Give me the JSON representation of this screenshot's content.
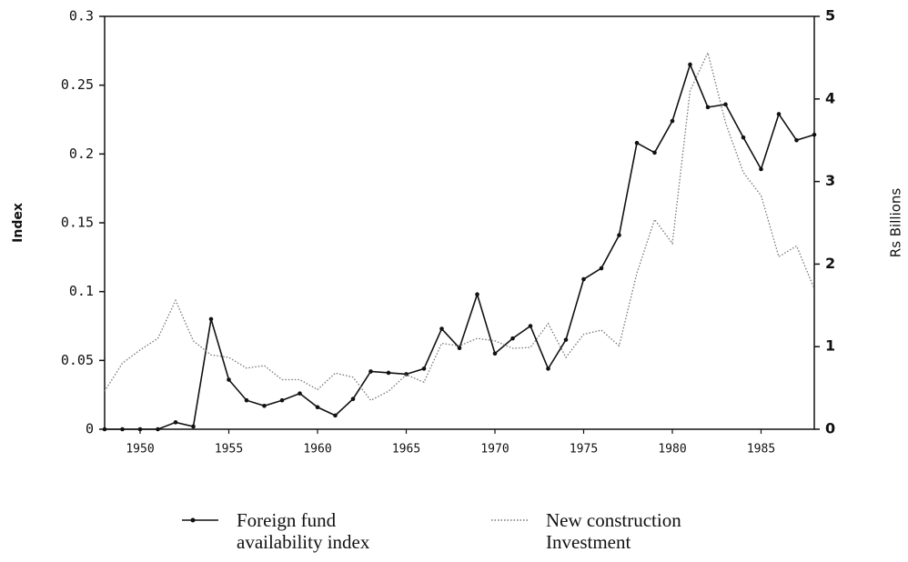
{
  "chart_data": {
    "type": "line",
    "x_label": null,
    "y_label": "Index",
    "y2_label": "Rs Billions",
    "x": [
      1948,
      1949,
      1950,
      1951,
      1952,
      1953,
      1954,
      1955,
      1956,
      1957,
      1958,
      1959,
      1960,
      1961,
      1962,
      1963,
      1964,
      1965,
      1966,
      1967,
      1968,
      1969,
      1970,
      1971,
      1972,
      1973,
      1974,
      1975,
      1976,
      1977,
      1978,
      1979,
      1980,
      1981,
      1982,
      1983,
      1984,
      1985,
      1986,
      1987,
      1988
    ],
    "xlim": [
      1948,
      1988
    ],
    "xticks": [
      1950,
      1955,
      1960,
      1965,
      1970,
      1975,
      1980,
      1985
    ],
    "ylim": [
      0,
      0.3
    ],
    "yticks": [
      0,
      0.05,
      0.1,
      0.15,
      0.2,
      0.25,
      0.3
    ],
    "y2lim": [
      0,
      5
    ],
    "y2ticks": [
      0,
      1,
      2,
      3,
      4,
      5
    ],
    "series": [
      {
        "name": "Foreign fund availability index",
        "color": "#111111",
        "line_style": "solid",
        "marker": true,
        "values": [
          0,
          0,
          0,
          0,
          0.005,
          0.002,
          0.08,
          0.036,
          0.021,
          0.017,
          0.021,
          0.026,
          0.016,
          0.01,
          0.022,
          0.042,
          0.041,
          0.04,
          0.044,
          0.073,
          0.059,
          0.098,
          0.055,
          0.066,
          0.075,
          0.044,
          0.065,
          0.109,
          0.117,
          0.141,
          0.208,
          0.201,
          0.224,
          0.265,
          0.234,
          0.236,
          0.212,
          0.189,
          0.229,
          0.21,
          0.214
        ]
      },
      {
        "name": "New construction Investment",
        "color": "#777777",
        "line_style": "dotted",
        "marker": false,
        "axis": "y2",
        "values": [
          0.46,
          0.8,
          0.96,
          1.1,
          1.56,
          1.07,
          0.9,
          0.87,
          0.74,
          0.77,
          0.6,
          0.6,
          0.48,
          0.68,
          0.63,
          0.35,
          0.46,
          0.66,
          0.57,
          1.04,
          1.01,
          1.1,
          1.07,
          0.98,
          0.99,
          1.28,
          0.87,
          1.15,
          1.2,
          1.01,
          1.89,
          2.54,
          2.25,
          4.1,
          4.56,
          3.71,
          3.11,
          2.83,
          2.09,
          2.22,
          1.7
        ]
      }
    ]
  }
}
